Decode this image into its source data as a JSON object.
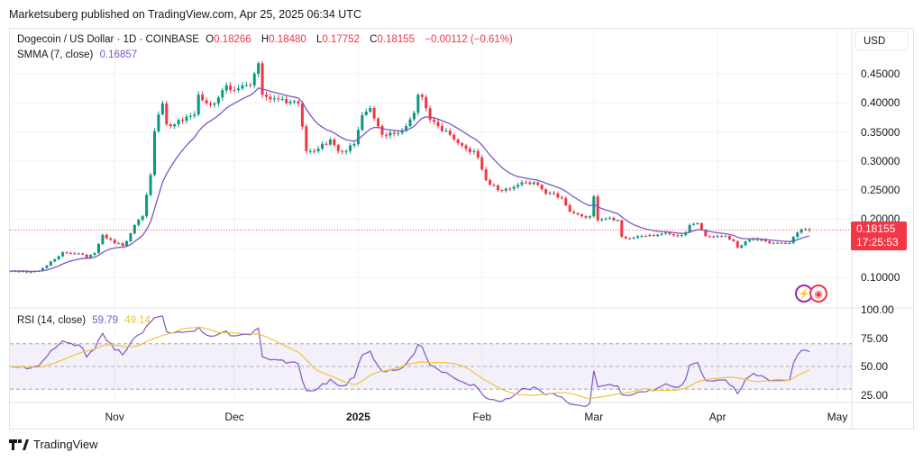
{
  "header": {
    "published": "Marketsuberg published on TradingView.com, Apr 25, 2025 06:34 UTC"
  },
  "symbol": {
    "name": "Dogecoin / US Dollar · 1D · COINBASE",
    "o_label": "O",
    "o": "0.18266",
    "h_label": "H",
    "h": "0.18480",
    "l_label": "L",
    "l": "0.17752",
    "c_label": "C",
    "c": "0.18155",
    "change": "−0.00112 (−0.61%)"
  },
  "smma": {
    "label": "SMMA (7, close)",
    "value": "0.16857"
  },
  "rsi": {
    "label": "RSI (14, close)",
    "value": "59.79",
    "ma_value": "49.14"
  },
  "price_axis": {
    "currency": "USD",
    "ticks": [
      "0.45000",
      "0.40000",
      "0.35000",
      "0.30000",
      "0.25000",
      "0.20000",
      "0.10000"
    ],
    "last_price": "0.18155",
    "countdown": "17:25:53"
  },
  "rsi_axis": {
    "ticks": [
      "100.00",
      "75.00",
      "50.00",
      "25.00"
    ]
  },
  "time_axis": {
    "labels": [
      {
        "t": "Nov",
        "day": 26,
        "bold": false
      },
      {
        "t": "Dec",
        "day": 56,
        "bold": false
      },
      {
        "t": "2025",
        "day": 87,
        "bold": true
      },
      {
        "t": "Feb",
        "day": 118,
        "bold": false
      },
      {
        "t": "Mar",
        "day": 146,
        "bold": false
      },
      {
        "t": "Apr",
        "day": 177,
        "bold": false
      },
      {
        "t": "May",
        "day": 207,
        "bold": false
      }
    ]
  },
  "footer": {
    "brand": "TradingView"
  },
  "colors": {
    "up": "#089981",
    "down": "#f23645",
    "smma": "#7e57c2",
    "rsi": "#7e57c2",
    "rsi_ma": "#f0c33c"
  },
  "chart_data": {
    "type": "candlestick",
    "title": "Dogecoin / US Dollar · 1D · COINBASE",
    "ylim": [
      0.08,
      0.5
    ],
    "first_day": "2024-10-06",
    "close_anchors": [
      [
        0,
        0.111
      ],
      [
        5,
        0.109
      ],
      [
        7,
        0.111
      ],
      [
        11,
        0.131
      ],
      [
        13,
        0.143
      ],
      [
        18,
        0.139
      ],
      [
        19,
        0.133
      ],
      [
        21,
        0.142
      ],
      [
        23,
        0.173
      ],
      [
        24,
        0.167
      ],
      [
        28,
        0.154
      ],
      [
        29,
        0.162
      ],
      [
        31,
        0.19
      ],
      [
        33,
        0.205
      ],
      [
        35,
        0.276
      ],
      [
        36,
        0.351
      ],
      [
        37,
        0.38
      ],
      [
        38,
        0.399
      ],
      [
        39,
        0.363
      ],
      [
        41,
        0.363
      ],
      [
        44,
        0.376
      ],
      [
        46,
        0.38
      ],
      [
        47,
        0.414
      ],
      [
        49,
        0.399
      ],
      [
        51,
        0.399
      ],
      [
        54,
        0.43
      ],
      [
        56,
        0.422
      ],
      [
        58,
        0.43
      ],
      [
        60,
        0.43
      ],
      [
        62,
        0.468
      ],
      [
        63,
        0.414
      ],
      [
        65,
        0.406
      ],
      [
        67,
        0.406
      ],
      [
        70,
        0.402
      ],
      [
        72,
        0.399
      ],
      [
        74,
        0.317
      ],
      [
        75,
        0.317
      ],
      [
        77,
        0.321
      ],
      [
        80,
        0.337
      ],
      [
        82,
        0.317
      ],
      [
        84,
        0.317
      ],
      [
        86,
        0.329
      ],
      [
        88,
        0.379
      ],
      [
        90,
        0.391
      ],
      [
        92,
        0.36
      ],
      [
        93,
        0.345
      ],
      [
        97,
        0.348
      ],
      [
        99,
        0.36
      ],
      [
        101,
        0.383
      ],
      [
        102,
        0.414
      ],
      [
        103,
        0.41
      ],
      [
        105,
        0.371
      ],
      [
        107,
        0.36
      ],
      [
        109,
        0.352
      ],
      [
        111,
        0.337
      ],
      [
        114,
        0.321
      ],
      [
        116,
        0.317
      ],
      [
        117,
        0.306
      ],
      [
        119,
        0.267
      ],
      [
        120,
        0.259
      ],
      [
        123,
        0.249
      ],
      [
        125,
        0.252
      ],
      [
        127,
        0.259
      ],
      [
        129,
        0.263
      ],
      [
        132,
        0.259
      ],
      [
        134,
        0.244
      ],
      [
        136,
        0.244
      ],
      [
        138,
        0.236
      ],
      [
        140,
        0.213
      ],
      [
        143,
        0.205
      ],
      [
        145,
        0.205
      ],
      [
        146,
        0.239
      ],
      [
        147,
        0.198
      ],
      [
        150,
        0.202
      ],
      [
        152,
        0.198
      ],
      [
        153,
        0.17
      ],
      [
        155,
        0.167
      ],
      [
        158,
        0.171
      ],
      [
        161,
        0.171
      ],
      [
        164,
        0.177
      ],
      [
        167,
        0.171
      ],
      [
        169,
        0.177
      ],
      [
        170,
        0.19
      ],
      [
        172,
        0.193
      ],
      [
        173,
        0.182
      ],
      [
        174,
        0.171
      ],
      [
        177,
        0.171
      ],
      [
        179,
        0.171
      ],
      [
        181,
        0.162
      ],
      [
        182,
        0.151
      ],
      [
        184,
        0.162
      ],
      [
        186,
        0.167
      ],
      [
        189,
        0.162
      ],
      [
        191,
        0.159
      ],
      [
        194,
        0.159
      ],
      [
        195,
        0.159
      ],
      [
        197,
        0.177
      ],
      [
        198,
        0.182
      ],
      [
        199,
        0.1827
      ],
      [
        200,
        0.18155
      ]
    ],
    "last_candle": {
      "open": 0.18266,
      "high": 0.1848,
      "low": 0.17752,
      "close": 0.18155
    },
    "indicators": [
      {
        "name": "SMMA",
        "length": 7
      },
      {
        "name": "RSI",
        "length": 14,
        "ma_length": 14,
        "bands": [
          30,
          50,
          70
        ]
      }
    ]
  }
}
